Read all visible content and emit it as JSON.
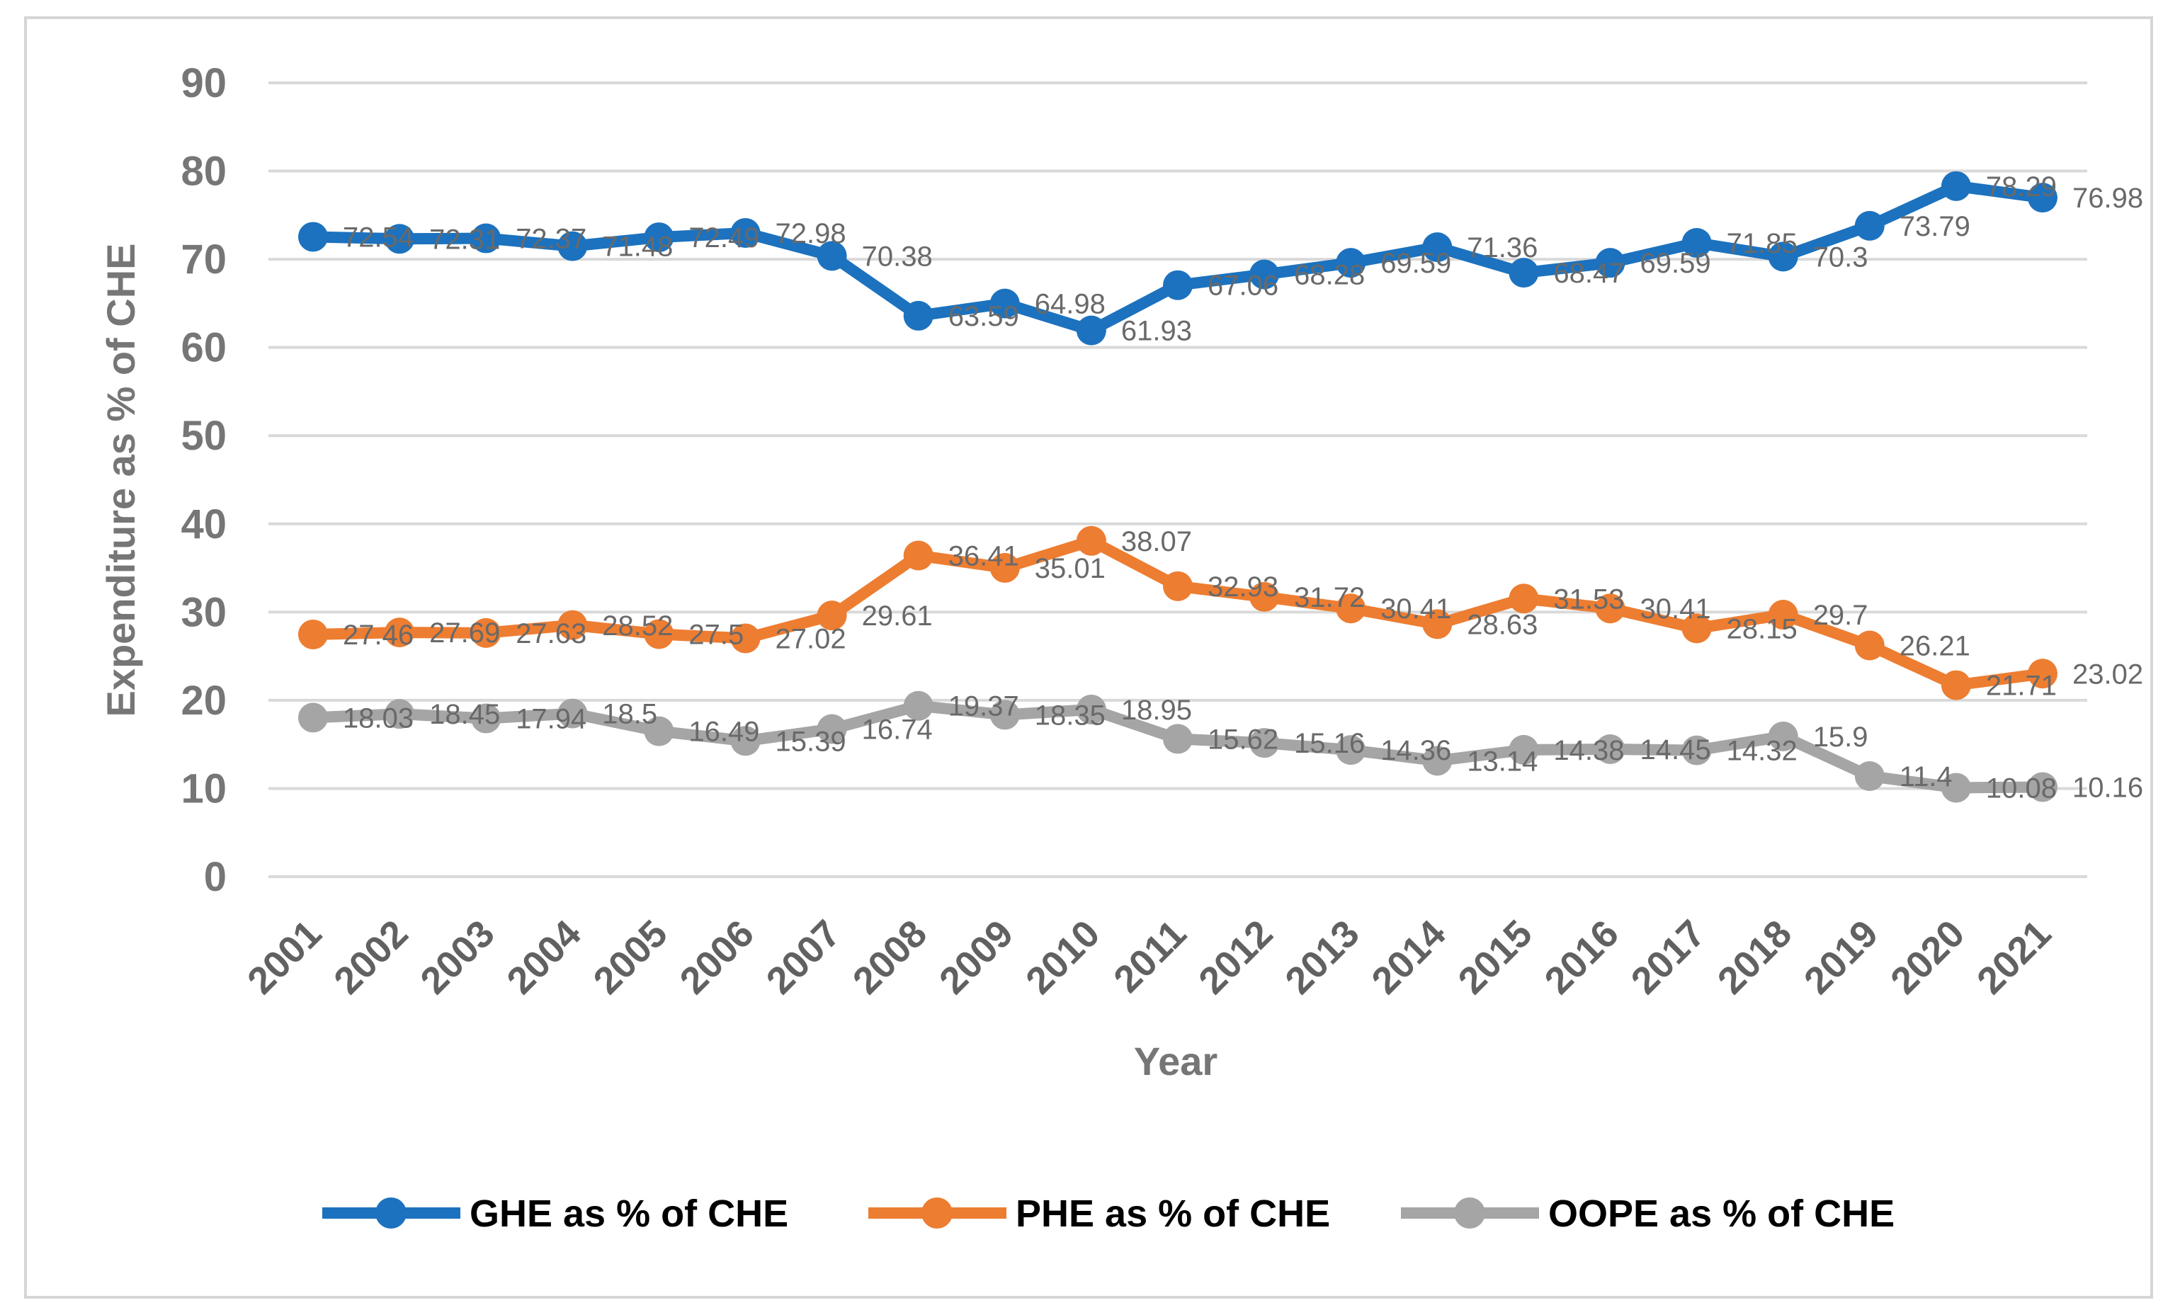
{
  "chart_data": {
    "type": "line",
    "title": "",
    "xlabel": "Year",
    "ylabel": "Expenditure as % of CHE",
    "ylim": [
      0,
      90
    ],
    "ytick_step": 10,
    "yticks": [
      "0",
      "10",
      "20",
      "30",
      "40",
      "50",
      "60",
      "70",
      "80",
      "90"
    ],
    "grid": true,
    "legend_position": "bottom",
    "marker": "circle",
    "categories": [
      "2001",
      "2002",
      "2003",
      "2004",
      "2005",
      "2006",
      "2007",
      "2008",
      "2009",
      "2010",
      "2011",
      "2012",
      "2013",
      "2014",
      "2015",
      "2016",
      "2017",
      "2018",
      "2019",
      "2020",
      "2021"
    ],
    "series": [
      {
        "name": "GHE as % of CHE",
        "color": "#1C72BE",
        "values": [
          72.54,
          72.31,
          72.37,
          71.48,
          72.49,
          72.98,
          70.38,
          63.59,
          64.98,
          61.93,
          67.06,
          68.28,
          69.59,
          71.36,
          68.47,
          69.59,
          71.85,
          70.3,
          73.79,
          78.29,
          76.98
        ],
        "labels": [
          "72.54",
          "72.31",
          "72.37",
          "71.48",
          "72.49",
          "72.98",
          "70.38",
          "63.59",
          "64.98",
          "61.93",
          "67.06",
          "68.28",
          "69.59",
          "71.36",
          "68.47",
          "69.59",
          "71.85",
          "70.3",
          "73.79",
          "78.29",
          "76.98"
        ]
      },
      {
        "name": "PHE as % of CHE",
        "color": "#ED7D31",
        "values": [
          27.46,
          27.69,
          27.63,
          28.52,
          27.5,
          27.02,
          29.61,
          36.41,
          35.01,
          38.07,
          32.93,
          31.72,
          30.41,
          28.63,
          31.53,
          30.41,
          28.15,
          29.7,
          26.21,
          21.71,
          23.02
        ],
        "labels": [
          "27.46",
          "27.69",
          "27.63",
          "28.52",
          "27.5",
          "27.02",
          "29.61",
          "36.41",
          "35.01",
          "38.07",
          "32.93",
          "31.72",
          "30.41",
          "28.63",
          "31.53",
          "30.41",
          "28.15",
          "29.7",
          "26.21",
          "21.71",
          "23.02"
        ]
      },
      {
        "name": "OOPE as % of CHE",
        "color": "#A5A5A5",
        "values": [
          18.03,
          18.45,
          17.94,
          18.5,
          16.49,
          15.39,
          16.74,
          19.37,
          18.35,
          18.95,
          15.62,
          15.16,
          14.36,
          13.14,
          14.38,
          14.45,
          14.32,
          15.9,
          11.4,
          10.08,
          10.16
        ],
        "labels": [
          "18.03",
          "18.45",
          "17.94",
          "18.5",
          "16.49",
          "15.39",
          "16.74",
          "19.37",
          "18.35",
          "18.95",
          "15.62",
          "15.16",
          "14.36",
          "13.14",
          "14.38",
          "14.45",
          "14.32",
          "15.9",
          "11.4",
          "10.08",
          "10.16"
        ]
      }
    ]
  },
  "colors": {
    "background": "#FFFFFF",
    "figure_border": "#D6D6D6",
    "gridline": "#D9D9D9",
    "axis_text": "#767676",
    "data_label_text": "#696969",
    "legend_text": "#000000"
  }
}
